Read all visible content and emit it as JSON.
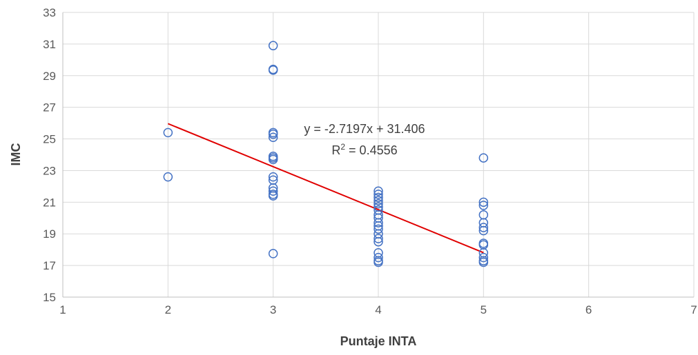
{
  "chart_data": {
    "type": "scatter",
    "xlabel": "Puntaje INTA",
    "ylabel": "IMC",
    "xlim": [
      1,
      7
    ],
    "ylim": [
      15,
      33
    ],
    "x_ticks": [
      "1",
      "2",
      "3",
      "4",
      "5",
      "6",
      "7"
    ],
    "y_ticks": [
      "15",
      "17",
      "19",
      "21",
      "23",
      "25",
      "27",
      "29",
      "31",
      "33"
    ],
    "grid": true,
    "legend": "none",
    "colors": {
      "marker": "#4472C4",
      "trendline": "#E00000",
      "grid": "#D9D9D9"
    },
    "series": [
      {
        "points": [
          [
            2,
            25.4
          ],
          [
            2,
            22.6
          ],
          [
            3,
            30.9
          ],
          [
            3,
            29.4
          ],
          [
            3,
            29.35
          ],
          [
            3,
            25.4
          ],
          [
            3,
            25.3
          ],
          [
            3,
            25.1
          ],
          [
            3,
            23.9
          ],
          [
            3,
            23.8
          ],
          [
            3,
            23.7
          ],
          [
            3,
            22.6
          ],
          [
            3,
            22.4
          ],
          [
            3,
            21.9
          ],
          [
            3,
            21.7
          ],
          [
            3,
            21.5
          ],
          [
            3,
            21.4
          ],
          [
            3,
            17.75
          ],
          [
            4,
            21.7
          ],
          [
            4,
            21.5
          ],
          [
            4,
            21.3
          ],
          [
            4,
            21.1
          ],
          [
            4,
            20.9
          ],
          [
            4,
            20.7
          ],
          [
            4,
            20.5
          ],
          [
            4,
            20.2
          ],
          [
            4,
            20.0
          ],
          [
            4,
            19.7
          ],
          [
            4,
            19.5
          ],
          [
            4,
            19.3
          ],
          [
            4,
            19.0
          ],
          [
            4,
            18.7
          ],
          [
            4,
            18.5
          ],
          [
            4,
            17.8
          ],
          [
            4,
            17.5
          ],
          [
            4,
            17.3
          ],
          [
            4,
            17.2
          ],
          [
            5,
            23.8
          ],
          [
            5,
            21.0
          ],
          [
            5,
            20.8
          ],
          [
            5,
            20.2
          ],
          [
            5,
            19.7
          ],
          [
            5,
            19.4
          ],
          [
            5,
            19.2
          ],
          [
            5,
            18.4
          ],
          [
            5,
            18.3
          ],
          [
            5,
            17.8
          ],
          [
            5,
            17.5
          ],
          [
            5,
            17.3
          ],
          [
            5,
            17.2
          ]
        ]
      }
    ],
    "trendline": {
      "slope": -2.7197,
      "intercept": 31.406,
      "x_range": [
        2,
        5
      ],
      "equation_text": "y = -2.7197x + 31.406",
      "r2_prefix": "R",
      "r2_sup": "2",
      "r2_suffix": " = 0.4556"
    }
  }
}
